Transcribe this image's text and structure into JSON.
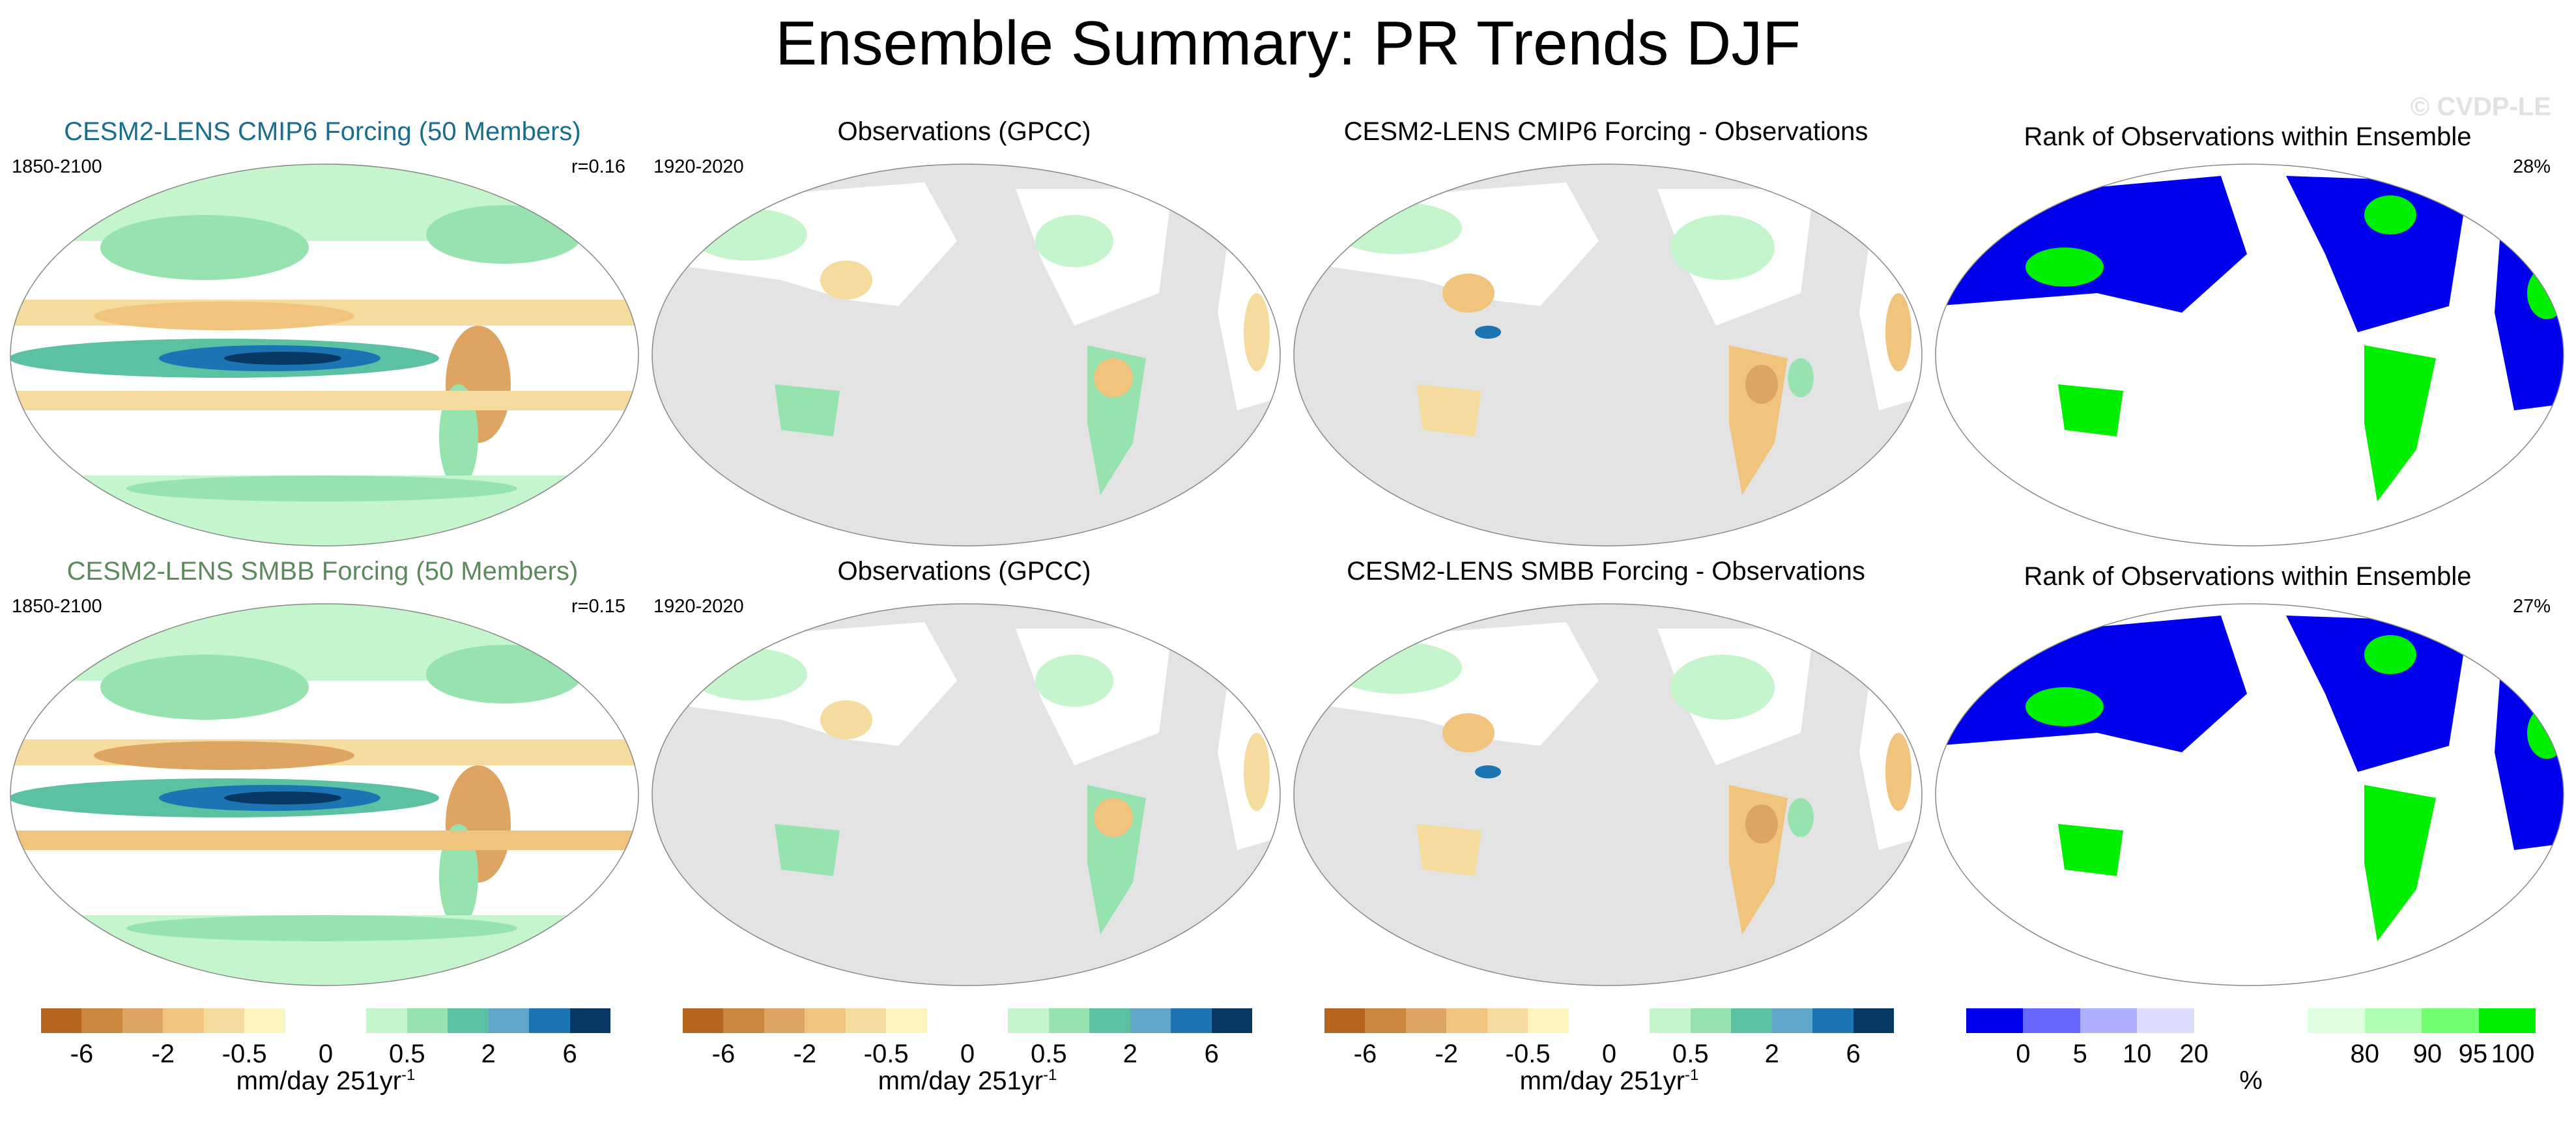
{
  "title": "Ensemble Summary: PR Trends DJF",
  "watermark": "© CVDP-LE",
  "rows": [
    {
      "model": {
        "title": "CESM2-LENS CMIP6 Forcing (50 Members)",
        "title_color": "#1b6d8e",
        "period": "1850-2100",
        "corr": "r=0.16"
      },
      "obs": {
        "title": "Observations (GPCC)",
        "period": "1920-2020"
      },
      "diff": {
        "title": "CESM2-LENS CMIP6 Forcing - Observations"
      },
      "rank": {
        "title": "Rank of Observations within Ensemble",
        "percent": "28%"
      }
    },
    {
      "model": {
        "title": "CESM2-LENS SMBB Forcing (50 Members)",
        "title_color": "#5c8a5c",
        "period": "1850-2100",
        "corr": "r=0.15"
      },
      "obs": {
        "title": "Observations (GPCC)",
        "period": "1920-2020"
      },
      "diff": {
        "title": "CESM2-LENS SMBB Forcing - Observations"
      },
      "rank": {
        "title": "Rank of Observations within Ensemble",
        "percent": "27%"
      }
    }
  ],
  "trend_colorbar": {
    "colors": [
      "#b5651d",
      "#cc8640",
      "#dea461",
      "#f0c47d",
      "#f5dc9e",
      "#fdf5c0",
      "#ffffff",
      "#ffffff",
      "#c5f5cc",
      "#96e3b0",
      "#5cc1a2",
      "#60a6c8",
      "#1c74b3",
      "#073763"
    ],
    "ticks": [
      "-6",
      "-2",
      "-0.5",
      "0",
      "0.5",
      "2",
      "6"
    ],
    "label": "mm/day 251yr",
    "label_exp": "-1"
  },
  "rank_colorbar": {
    "colors": [
      "#0000ee",
      "#6767ff",
      "#afafff",
      "#dcdcff",
      "#ffffff",
      "#ffffff",
      "#e0ffe0",
      "#b0ffb0",
      "#70ff70",
      "#00ee00"
    ],
    "ticks": [
      "0",
      "5",
      "10",
      "20",
      "80",
      "90",
      "95",
      "100"
    ],
    "label": "%"
  },
  "map_colors": {
    "ocean_gray": "#e3e3e3",
    "dry": "#f0c47d",
    "strong_dry": "#dea461",
    "wet": "#96e3b0",
    "strong_wet": "#5cc1a2",
    "blue": "#1c74b3",
    "rank_blue": "#0000ee",
    "rank_green": "#00ee00"
  }
}
